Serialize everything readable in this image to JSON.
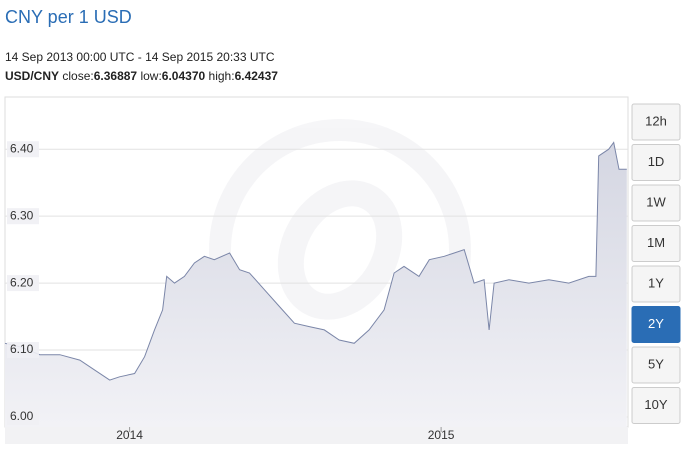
{
  "chart_data": {
    "type": "area",
    "title": "CNY per 1 USD",
    "subtitle": "14 Sep 2013 00:00 UTC - 14 Sep 2015 20:33 UTC",
    "stats": {
      "pair": "USD/CNY",
      "items": [
        {
          "label": "close:",
          "value": "6.36887"
        },
        {
          "label": "low:",
          "value": "6.04370"
        },
        {
          "label": "high:",
          "value": "6.42437"
        }
      ]
    },
    "x": [
      2013.6,
      2013.647,
      2013.712,
      2013.776,
      2013.84,
      2013.888,
      2013.936,
      2013.968,
      2014.016,
      2014.048,
      2014.08,
      2014.106,
      2014.119,
      2014.144,
      2014.176,
      2014.208,
      2014.24,
      2014.272,
      2014.321,
      2014.353,
      2014.385,
      2014.433,
      2014.481,
      2014.529,
      2014.577,
      2014.625,
      2014.673,
      2014.721,
      2014.769,
      2014.817,
      2014.849,
      2014.881,
      2014.929,
      2014.962,
      2015.01,
      2015.042,
      2015.074,
      2015.106,
      2015.138,
      2015.154,
      2015.17,
      2015.218,
      2015.282,
      2015.346,
      2015.41,
      2015.474,
      2015.497,
      2015.506,
      2015.538,
      2015.554,
      2015.571,
      2015.596
    ],
    "values": [
      6.11,
      6.105,
      6.093,
      6.093,
      6.085,
      6.07,
      6.055,
      6.06,
      6.065,
      6.09,
      6.13,
      6.16,
      6.21,
      6.2,
      6.21,
      6.23,
      6.24,
      6.235,
      6.245,
      6.22,
      6.215,
      6.19,
      6.165,
      6.14,
      6.135,
      6.13,
      6.115,
      6.11,
      6.13,
      6.16,
      6.215,
      6.225,
      6.21,
      6.235,
      6.24,
      6.245,
      6.25,
      6.2,
      6.205,
      6.13,
      6.2,
      6.205,
      6.2,
      6.205,
      6.2,
      6.21,
      6.21,
      6.39,
      6.4,
      6.41,
      6.37,
      6.37
    ],
    "color": "#7b86a8",
    "xlim": [
      2013.6,
      2015.6
    ],
    "xticks": [
      2014,
      2015
    ],
    "ylim": [
      5.985,
      6.478
    ],
    "yticks": [
      {
        "value": 6,
        "label": "6.00"
      },
      {
        "value": 6.1,
        "label": "6.10"
      },
      {
        "value": 6.2,
        "label": "6.20"
      },
      {
        "value": 6.3,
        "label": "6.30"
      },
      {
        "value": 6.4,
        "label": "6.40"
      }
    ],
    "grid": true
  },
  "controls": {
    "buttons": [
      "12h",
      "1D",
      "1W",
      "1M",
      "1Y",
      "2Y",
      "5Y",
      "10Y"
    ],
    "selected": "2Y"
  }
}
